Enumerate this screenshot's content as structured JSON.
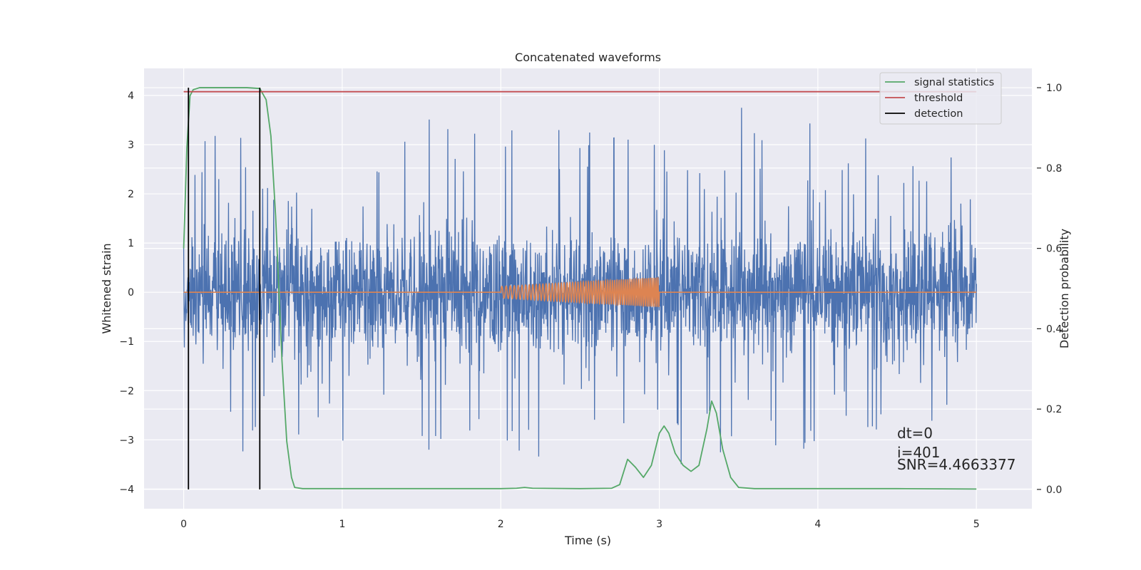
{
  "chart_data": {
    "type": "line",
    "title": "Concatenated waveforms",
    "xlabel": "Time (s)",
    "ylabel": "Whitened strain",
    "y2label": "Detection probability",
    "xlim": [
      -0.25,
      5.35
    ],
    "ylim": [
      -4.4,
      4.55
    ],
    "y2lim": [
      -0.048,
      1.048
    ],
    "x_ticks": [
      0,
      1,
      2,
      3,
      4,
      5
    ],
    "y_ticks": [
      -4,
      -3,
      -2,
      -1,
      0,
      1,
      2,
      3,
      4
    ],
    "y2_ticks": [
      0.0,
      0.2,
      0.4,
      0.6,
      0.8,
      1.0
    ],
    "x_tick_labels": [
      "0",
      "1",
      "2",
      "3",
      "4",
      "5"
    ],
    "y_tick_labels": [
      "−4",
      "−3",
      "−2",
      "−1",
      "0",
      "1",
      "2",
      "3",
      "4"
    ],
    "y2_tick_labels": [
      "0.0",
      "0.2",
      "0.4",
      "0.6",
      "0.8",
      "1.0"
    ],
    "grid": true,
    "legend_placement": "top-right",
    "series": [
      {
        "name": "",
        "axis": "left",
        "color": "#4c72b0",
        "kind": "noise",
        "description_values": {
          "x_start": 0.0,
          "x_end": 5.0,
          "dense_range": [
            -1.7,
            1.9
          ],
          "peak_max": 4.15,
          "peak_min": -3.85
        }
      },
      {
        "name": "",
        "axis": "left",
        "color": "#dd8452",
        "kind": "chirp",
        "segment": {
          "x_start": 2.0,
          "x_end": 3.0,
          "amp_start": 0.12,
          "amp_end": 0.3,
          "cycles": 60
        }
      },
      {
        "name": "signal statistics",
        "axis": "right",
        "color": "#55a868",
        "x": [
          0.0,
          0.02,
          0.04,
          0.06,
          0.1,
          0.2,
          0.3,
          0.4,
          0.48,
          0.52,
          0.55,
          0.58,
          0.6,
          0.62,
          0.65,
          0.68,
          0.7,
          0.75,
          1.0,
          1.5,
          2.0,
          2.1,
          2.15,
          2.2,
          2.5,
          2.7,
          2.75,
          2.8,
          2.85,
          2.9,
          2.95,
          3.0,
          3.03,
          3.06,
          3.1,
          3.15,
          3.2,
          3.25,
          3.3,
          3.33,
          3.36,
          3.4,
          3.45,
          3.5,
          3.6,
          4.0,
          4.5,
          5.0
        ],
        "y": [
          0.6,
          0.85,
          0.98,
          0.995,
          1.0,
          1.0,
          1.0,
          1.0,
          0.998,
          0.97,
          0.88,
          0.68,
          0.5,
          0.32,
          0.12,
          0.03,
          0.005,
          0.002,
          0.002,
          0.002,
          0.002,
          0.003,
          0.005,
          0.003,
          0.002,
          0.003,
          0.012,
          0.075,
          0.055,
          0.03,
          0.06,
          0.14,
          0.158,
          0.14,
          0.09,
          0.06,
          0.045,
          0.06,
          0.15,
          0.22,
          0.19,
          0.1,
          0.03,
          0.005,
          0.002,
          0.002,
          0.002,
          0.001
        ]
      },
      {
        "name": "threshold",
        "axis": "right",
        "color": "#c44e52",
        "x": [
          0.0,
          5.0
        ],
        "y": [
          0.99,
          0.99
        ]
      },
      {
        "name": "detection",
        "axis": "right",
        "color": "#000000",
        "kind": "vlines",
        "x": [
          0.03,
          0.48
        ],
        "y_range": [
          0.0,
          1.0
        ]
      }
    ],
    "legend": [
      {
        "label": "signal statistics",
        "color": "#55a868"
      },
      {
        "label": "threshold",
        "color": "#c44e52"
      },
      {
        "label": "detection",
        "color": "#000000"
      }
    ],
    "annotations": [
      {
        "text": "dt=0",
        "x": 4.5,
        "y": -3.0
      },
      {
        "text": "i=401",
        "x": 4.5,
        "y": -3.4
      },
      {
        "text": "SNR=4.4663377",
        "x": 4.5,
        "y": -3.65
      }
    ]
  }
}
